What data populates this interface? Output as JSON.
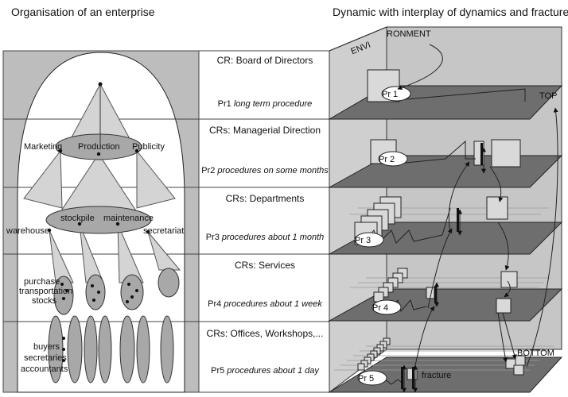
{
  "headings": {
    "left": "Organisation of an enterprise",
    "right": "Dynamic with interplay of dynamics and fractures"
  },
  "levels": [
    {
      "cr": "CR: Board of Directors",
      "pr_code": "Pr1",
      "pr_text": "long term procedure",
      "cube_label": "Pr 1"
    },
    {
      "cr": "CRs: Managerial Direction",
      "pr_code": "Pr2",
      "pr_text": "procedures on some months",
      "cube_label": "Pr 2"
    },
    {
      "cr": "CRs: Departments",
      "pr_code": "Pr3",
      "pr_text": "procedures about 1 month",
      "cube_label": "Pr 3"
    },
    {
      "cr": "CRs: Services",
      "pr_code": "Pr4",
      "pr_text": "procedures about 1 week",
      "cube_label": "Pr 4"
    },
    {
      "cr": "CRs: Offices, Workshops,...",
      "pr_code": "Pr5",
      "pr_text": "procedures about 1 day",
      "cube_label": "Pr 5"
    }
  ],
  "org": {
    "marketing": "Marketing",
    "production": "Production",
    "publicity": "Publicity",
    "stockpile": "stockpile",
    "maintenance": "maintenance",
    "warehouse": "warehouse",
    "secretariat": "secretariat",
    "purchase": "purchase",
    "transportation": "transportation",
    "stocks": "stocks",
    "buyers": "buyers",
    "secretaries": "secretaries",
    "accountants": "accountants"
  },
  "labels": {
    "env_a": "ENVI",
    "env_b": "RONMENT",
    "top": "TOP",
    "bottom": "BOTTOM",
    "fracture": "fracture"
  },
  "colors": {
    "panel": "#bdbdbd",
    "plane": "#6e6e6e",
    "ellipse": "#a8a8a8",
    "cube": "#d9d9d9"
  }
}
